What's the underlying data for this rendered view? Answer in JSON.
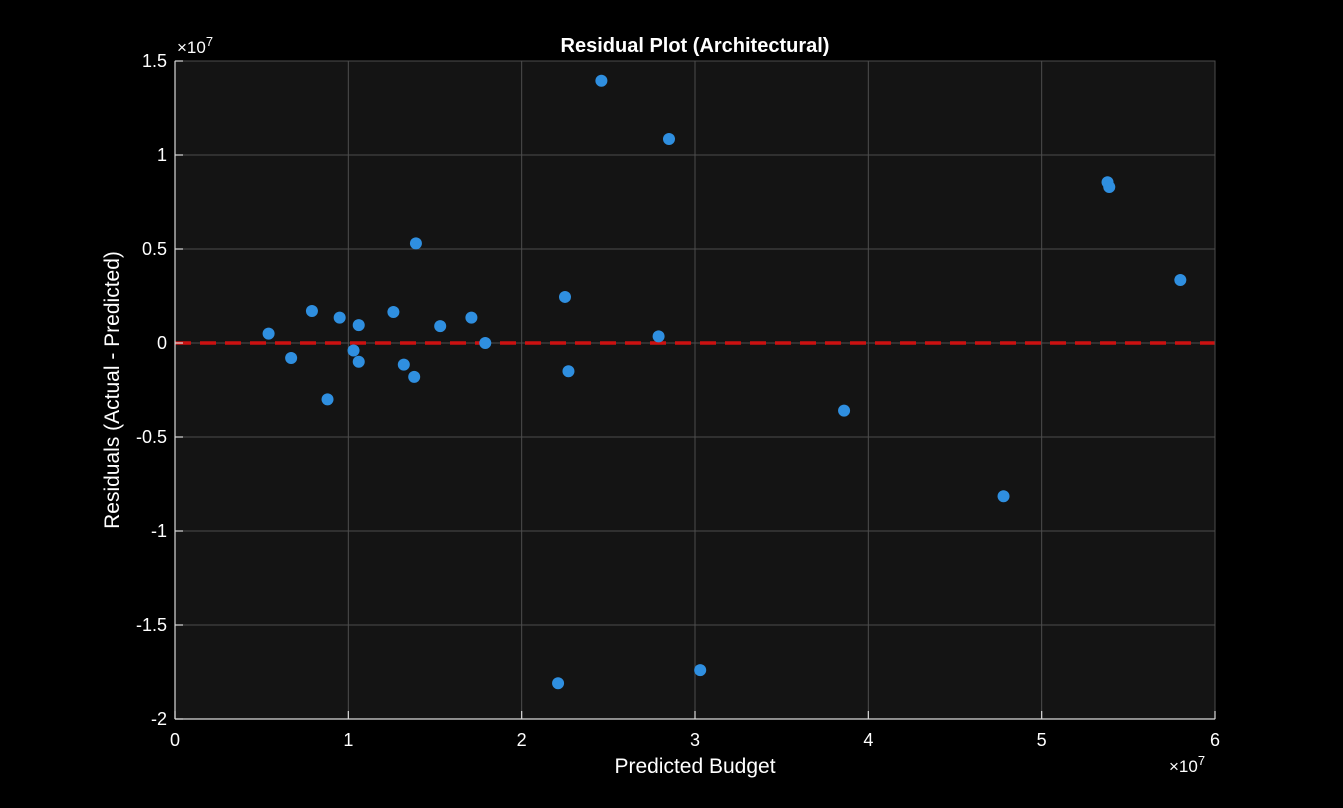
{
  "chart_data": {
    "type": "scatter",
    "title": "Residual Plot (Architectural)",
    "xlabel": "Predicted Budget",
    "ylabel": "Residuals (Actual - Predicted)",
    "x_exponent": "×10",
    "x_exponent_power": "7",
    "y_exponent": "×10",
    "y_exponent_power": "7",
    "xlim": [
      0,
      60000000
    ],
    "ylim": [
      -20000000,
      15000000
    ],
    "x_ticks": [
      0,
      10000000,
      20000000,
      30000000,
      40000000,
      50000000,
      60000000
    ],
    "x_tick_labels": [
      "0",
      "1",
      "2",
      "3",
      "4",
      "5",
      "6"
    ],
    "y_ticks": [
      -20000000,
      -15000000,
      -10000000,
      -5000000,
      0,
      5000000,
      10000000,
      15000000
    ],
    "y_tick_labels": [
      "-2",
      "-1.5",
      "-1",
      "-0.5",
      "0",
      "0.5",
      "1",
      "1.5"
    ],
    "grid": true,
    "reference_line": {
      "y": 0,
      "style": "dashed",
      "color": "#cc1111"
    },
    "colors": {
      "background": "#000000",
      "plot_area": "#141414",
      "grid": "#4d4d4d",
      "axis": "#d9d9d9",
      "points": "#2f8fe0"
    },
    "points": [
      {
        "x": 5400000,
        "y": 500000
      },
      {
        "x": 6700000,
        "y": -800000
      },
      {
        "x": 7900000,
        "y": 1700000
      },
      {
        "x": 8800000,
        "y": -3000000
      },
      {
        "x": 9500000,
        "y": 1350000
      },
      {
        "x": 10300000,
        "y": -400000
      },
      {
        "x": 10600000,
        "y": 950000
      },
      {
        "x": 10600000,
        "y": -1000000
      },
      {
        "x": 12600000,
        "y": 1650000
      },
      {
        "x": 13200000,
        "y": -1150000
      },
      {
        "x": 13800000,
        "y": -1800000
      },
      {
        "x": 13900000,
        "y": 5300000
      },
      {
        "x": 15300000,
        "y": 900000
      },
      {
        "x": 17100000,
        "y": 1350000
      },
      {
        "x": 17900000,
        "y": 0
      },
      {
        "x": 22100000,
        "y": -18100000
      },
      {
        "x": 22500000,
        "y": 2450000
      },
      {
        "x": 22700000,
        "y": -1500000
      },
      {
        "x": 24600000,
        "y": 13950000
      },
      {
        "x": 27900000,
        "y": 350000
      },
      {
        "x": 28500000,
        "y": 10850000
      },
      {
        "x": 30300000,
        "y": -17400000
      },
      {
        "x": 38600000,
        "y": -3600000
      },
      {
        "x": 47800000,
        "y": -8150000
      },
      {
        "x": 53800000,
        "y": 8550000
      },
      {
        "x": 53900000,
        "y": 8300000
      },
      {
        "x": 58000000,
        "y": 3350000
      }
    ]
  }
}
